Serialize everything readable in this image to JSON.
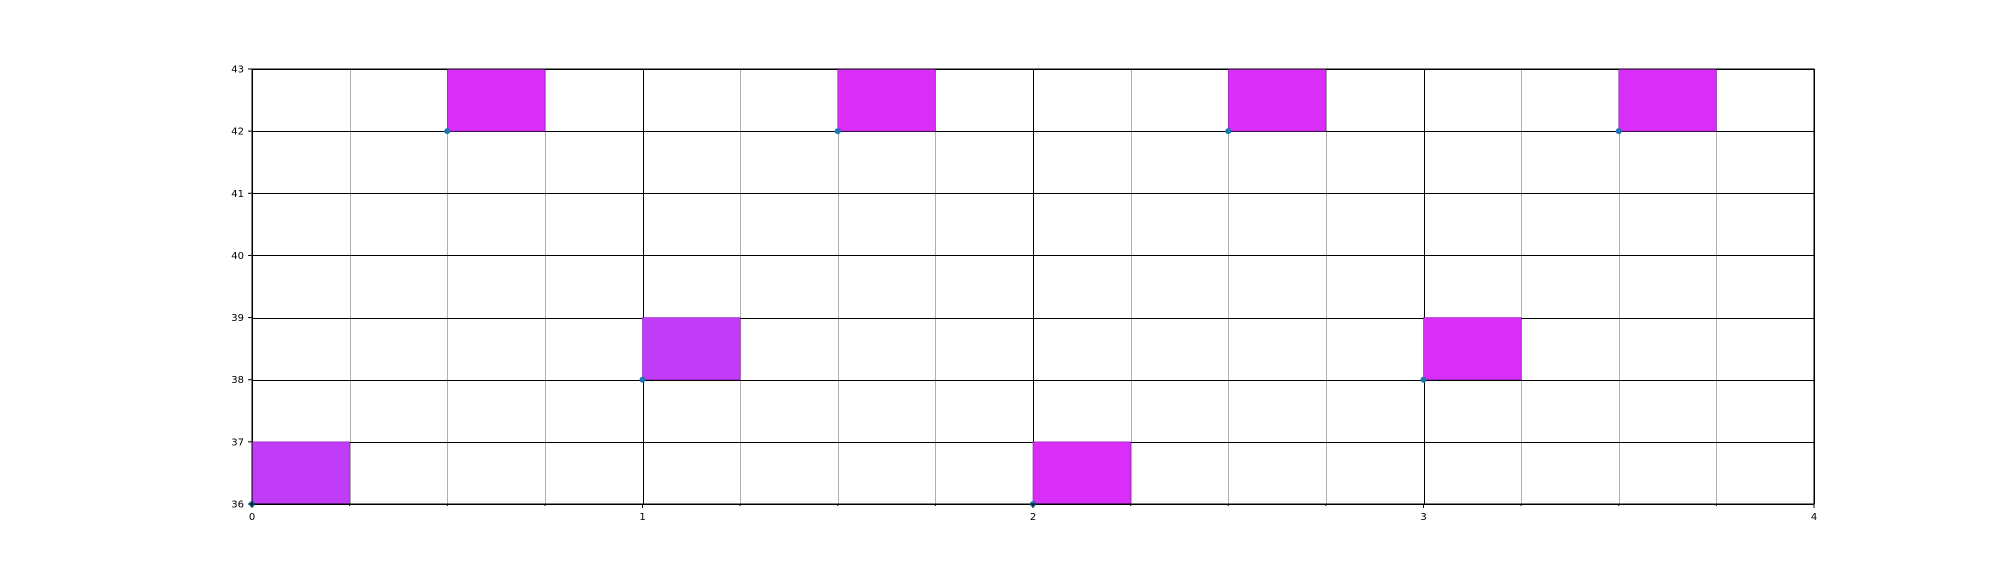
{
  "chart_data": {
    "type": "scatter",
    "title": "",
    "xlabel": "",
    "ylabel": "",
    "xlim": [
      0,
      4
    ],
    "ylim": [
      36,
      43
    ],
    "x_major_ticks": [
      "0",
      "1",
      "2",
      "3",
      "4"
    ],
    "x_minor_ticks": [
      0.25,
      0.5,
      0.75,
      1.25,
      1.5,
      1.75,
      2.25,
      2.5,
      2.75,
      3.25,
      3.5,
      3.75
    ],
    "y_ticks": [
      "36",
      "37",
      "38",
      "39",
      "40",
      "41",
      "42",
      "43"
    ],
    "grid": true,
    "points": [
      {
        "x": 0.0,
        "y": 36
      },
      {
        "x": 0.5,
        "y": 42
      },
      {
        "x": 1.0,
        "y": 38
      },
      {
        "x": 1.5,
        "y": 42
      },
      {
        "x": 2.0,
        "y": 36
      },
      {
        "x": 2.5,
        "y": 42
      },
      {
        "x": 3.0,
        "y": 38
      },
      {
        "x": 3.5,
        "y": 42
      }
    ],
    "rectangles": [
      {
        "x": 0.0,
        "y": 36,
        "width": 0.25,
        "height": 1,
        "color": "#c03cf7"
      },
      {
        "x": 0.5,
        "y": 42,
        "width": 0.25,
        "height": 1,
        "color": "#d92ef7"
      },
      {
        "x": 1.0,
        "y": 38,
        "width": 0.25,
        "height": 1,
        "color": "#c03cf7"
      },
      {
        "x": 1.5,
        "y": 42,
        "width": 0.25,
        "height": 1,
        "color": "#d92ef7"
      },
      {
        "x": 2.0,
        "y": 36,
        "width": 0.25,
        "height": 1,
        "color": "#d92ef7"
      },
      {
        "x": 2.5,
        "y": 42,
        "width": 0.25,
        "height": 1,
        "color": "#d92ef7"
      },
      {
        "x": 3.0,
        "y": 38,
        "width": 0.25,
        "height": 1,
        "color": "#d92ef7"
      },
      {
        "x": 3.5,
        "y": 42,
        "width": 0.25,
        "height": 1,
        "color": "#d92ef7"
      }
    ],
    "colors": {
      "marker": "#1f77b4",
      "major_grid": "#000000",
      "minor_grid": "#b0b0b0",
      "frame": "#000000"
    }
  }
}
